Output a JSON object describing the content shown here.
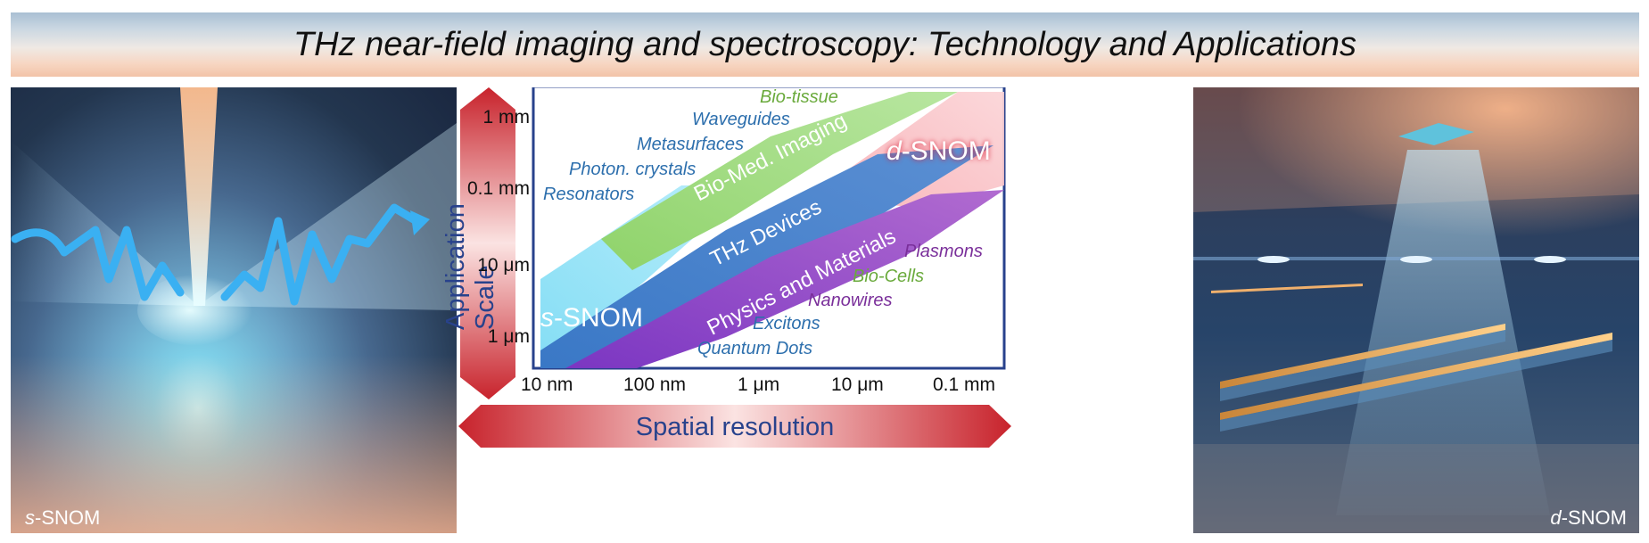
{
  "title": "THz near-field imaging and spectroscopy: Technology and Applications",
  "left_panel": {
    "label_italic": "s",
    "label_rest": "-SNOM"
  },
  "right_panel": {
    "label_italic": "d",
    "label_rest": "-SNOM"
  },
  "chart": {
    "y_axis_title": "Application Scale",
    "x_axis_title": "Spatial resolution",
    "y_ticks": [
      "1 mm",
      "0.1 mm",
      "10 μm",
      "1 μm"
    ],
    "x_ticks": [
      "10 nm",
      "100 nm",
      "1 μm",
      "10 μm",
      "0.1 mm"
    ],
    "bands": {
      "bio_med": "Bio-Med. Imaging",
      "thz_devices": "THz Devices",
      "physics": "Physics and Materials"
    },
    "s_snom": {
      "italic": "s",
      "rest": "-SNOM"
    },
    "d_snom": {
      "italic": "d",
      "rest": "-SNOM"
    },
    "annotations": {
      "bio_tissue": "Bio-tissue",
      "waveguides": "Waveguides",
      "metasurfaces": "Metasurfaces",
      "photon_crystals": "Photon. crystals",
      "resonators": "Resonators",
      "plasmons": "Plasmons",
      "bio_cells": "Bio-Cells",
      "nanowires": "Nanowires",
      "excitons": "Excitons",
      "quantum_dots": "Quantum Dots"
    },
    "colors": {
      "green": "#6aaa3c",
      "blue": "#2d6fad",
      "purple": "#7a2f9a",
      "axis_frame": "#28428c",
      "arrow_red": "#c8232c"
    }
  }
}
